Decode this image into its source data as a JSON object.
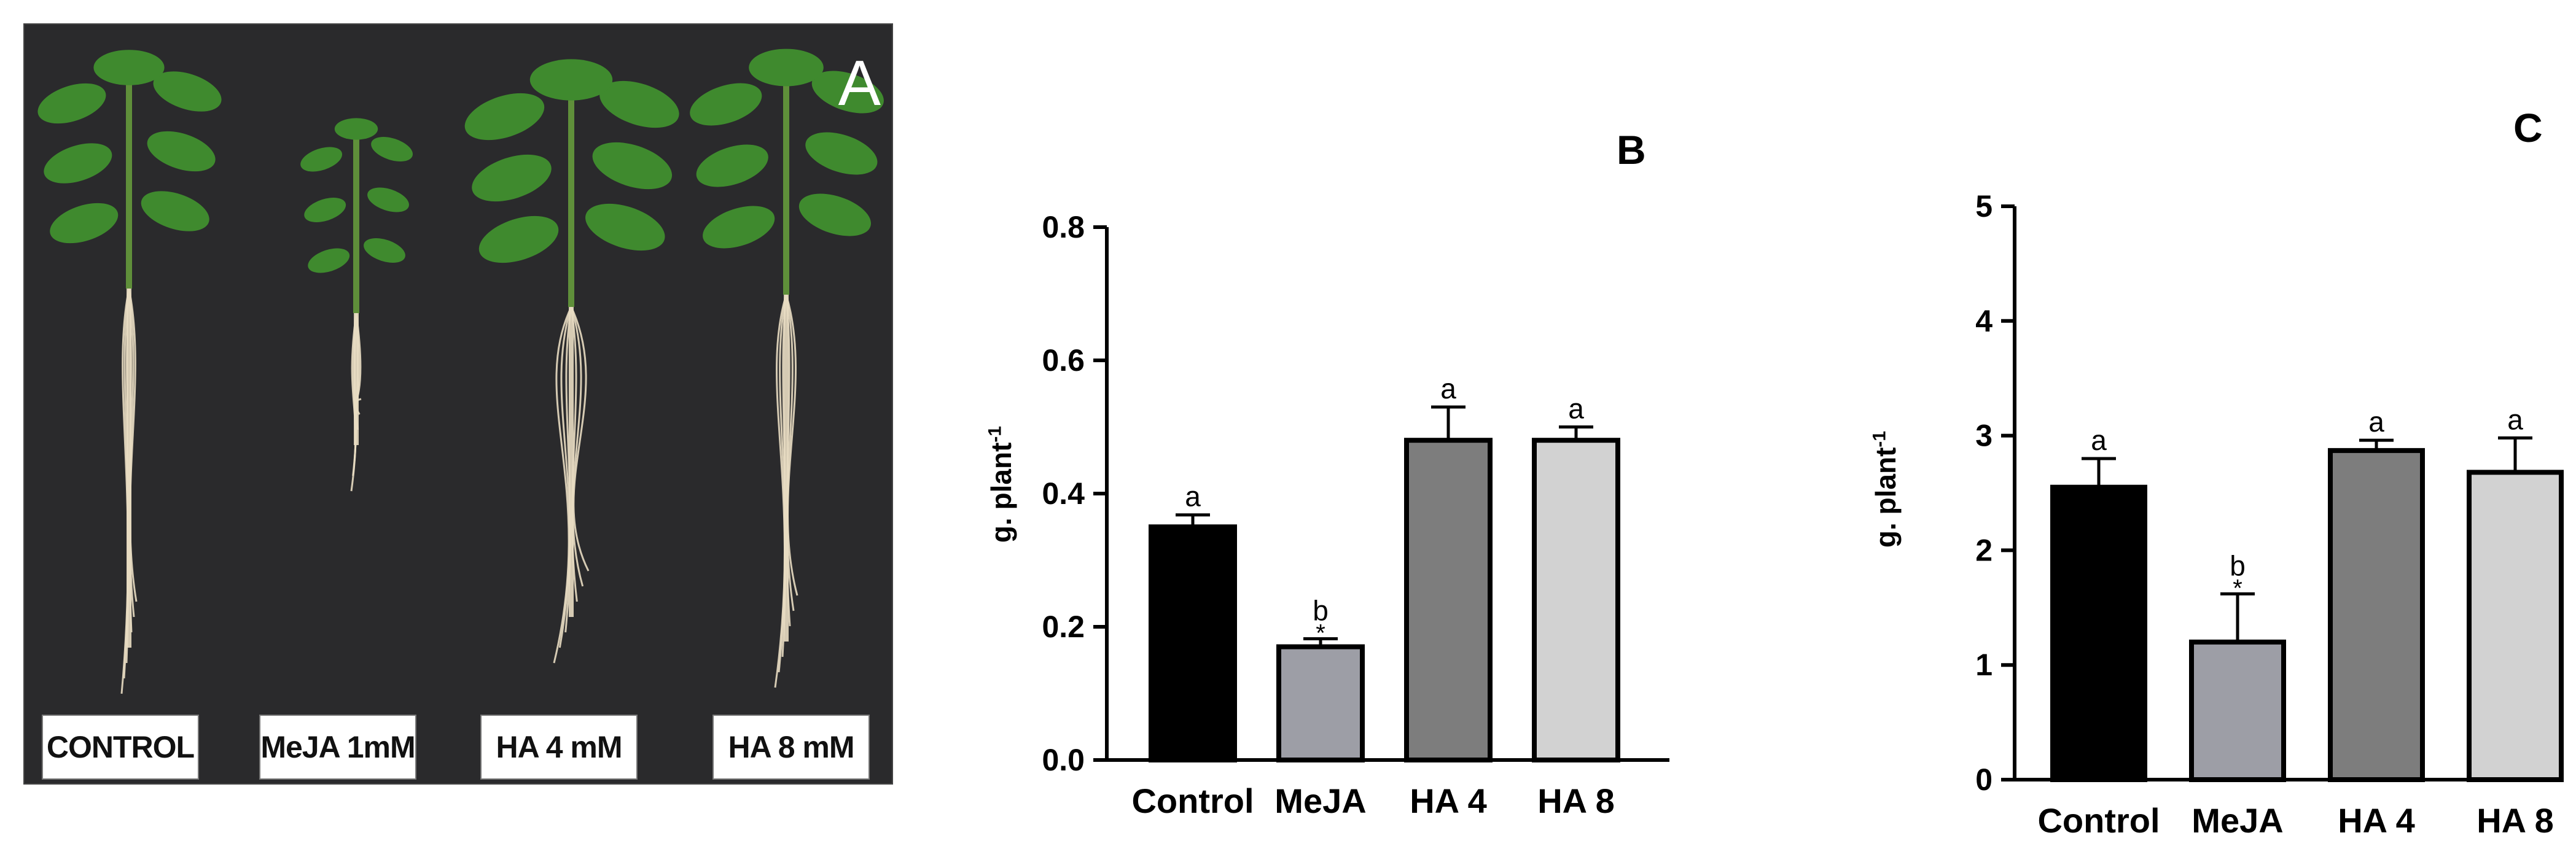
{
  "figure": {
    "panel_a": {
      "letter": "A",
      "labels": [
        "CONTROL",
        "MeJA 1mM",
        "HA 4 mM",
        "HA 8 mM"
      ],
      "colors": {
        "background": "#2a2a2c",
        "leaf": "#3f8a2e",
        "stem": "#5f8f3a",
        "root": "#e8dcc2"
      }
    }
  },
  "chart_data": [
    {
      "type": "bar",
      "panel": "B",
      "categories": [
        "Control",
        "MeJA",
        "HA 4",
        "HA 8"
      ],
      "values": [
        0.35,
        0.17,
        0.48,
        0.48
      ],
      "errors": [
        0.018,
        0.012,
        0.05,
        0.02
      ],
      "letters": [
        "a",
        "b",
        "a",
        "a"
      ],
      "significance": [
        "",
        "*",
        "",
        ""
      ],
      "bar_colors": [
        "#000000",
        "#9d9ea6",
        "#7d7d7d",
        "#d2d2d2"
      ],
      "ylabel_base": "g. plant",
      "ylabel_exp": "-1",
      "ylim": [
        0,
        0.8
      ],
      "yticks": [
        0,
        0.2,
        0.4,
        0.6,
        0.8
      ],
      "ytick_labels": [
        "0.0",
        "0.2",
        "0.4",
        "0.6",
        "0.8"
      ]
    },
    {
      "type": "bar",
      "panel": "C",
      "categories": [
        "Control",
        "MeJA",
        "HA 4",
        "HA 8"
      ],
      "values": [
        2.55,
        1.2,
        2.87,
        2.68
      ],
      "errors": [
        0.25,
        0.42,
        0.09,
        0.3
      ],
      "letters": [
        "a",
        "b",
        "a",
        "a"
      ],
      "significance": [
        "",
        "*",
        "",
        ""
      ],
      "bar_colors": [
        "#000000",
        "#9d9ea6",
        "#7d7d7d",
        "#d2d2d2"
      ],
      "ylabel_base": "g. plant",
      "ylabel_exp": "-1",
      "ylim": [
        0,
        5
      ],
      "yticks": [
        0,
        1,
        2,
        3,
        4,
        5
      ],
      "ytick_labels": [
        "0",
        "1",
        "2",
        "3",
        "4",
        "5"
      ]
    }
  ]
}
